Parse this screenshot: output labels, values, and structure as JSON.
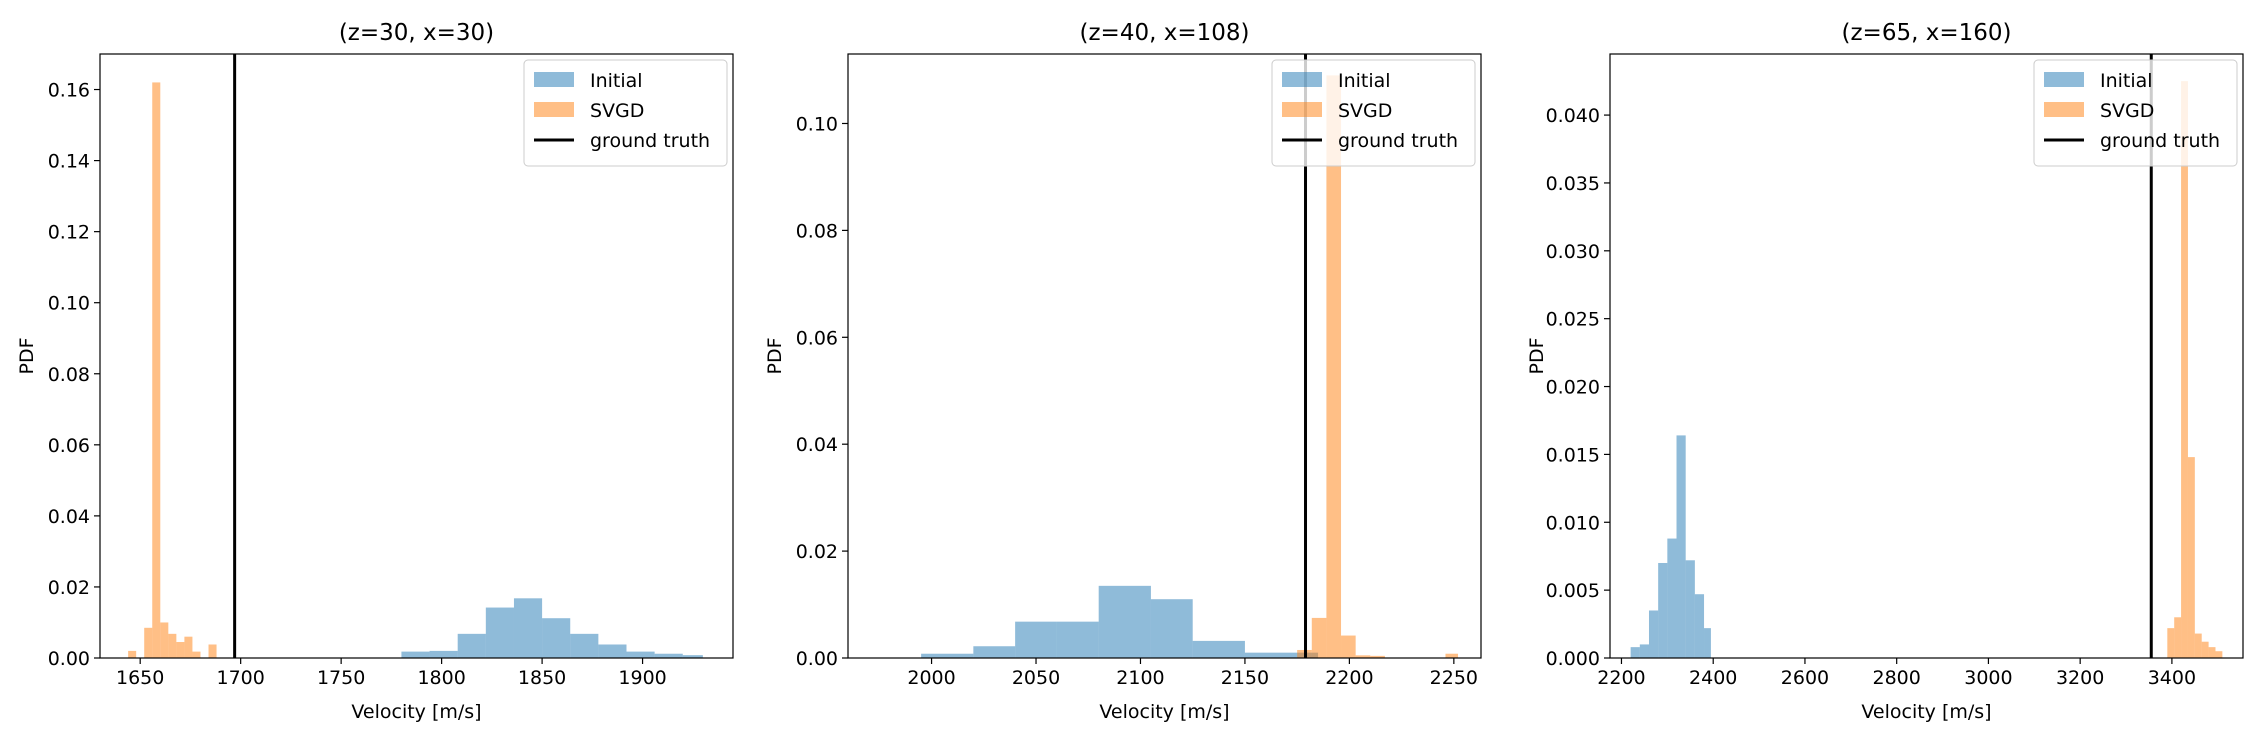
{
  "colors": {
    "initial": "#1f77b4",
    "svgd": "#ff7f0e",
    "truth": "#000000"
  },
  "legend": {
    "initial": "Initial",
    "svgd": "SVGD",
    "truth": "ground truth"
  },
  "chart_data": [
    {
      "type": "histogram",
      "title": "(z=30, x=30)",
      "xlabel": "Velocity [m/s]",
      "ylabel": "PDF",
      "xlim": [
        1630,
        1945
      ],
      "ylim": [
        0,
        0.17
      ],
      "xticks": [
        1650,
        1700,
        1750,
        1800,
        1850,
        1900
      ],
      "yticks": [
        0.0,
        0.02,
        0.04,
        0.06,
        0.08,
        0.1,
        0.12,
        0.14,
        0.16
      ],
      "ytick_labels": [
        "0.00",
        "0.02",
        "0.04",
        "0.06",
        "0.08",
        "0.10",
        "0.12",
        "0.14",
        "0.16"
      ],
      "legend_position": "upper right",
      "ground_truth": 1697,
      "series": [
        {
          "name": "Initial",
          "bins": [
            [
              1780,
              1794,
              0.0018
            ],
            [
              1794,
              1808,
              0.002
            ],
            [
              1808,
              1822,
              0.0068
            ],
            [
              1822,
              1836,
              0.0142
            ],
            [
              1836,
              1850,
              0.0168
            ],
            [
              1850,
              1864,
              0.0112
            ],
            [
              1864,
              1878,
              0.0068
            ],
            [
              1878,
              1892,
              0.0038
            ],
            [
              1892,
              1906,
              0.0018
            ],
            [
              1906,
              1920,
              0.0012
            ],
            [
              1920,
              1930,
              0.0008
            ]
          ]
        },
        {
          "name": "SVGD",
          "bins": [
            [
              1644,
              1648,
              0.002
            ],
            [
              1652,
              1656,
              0.0085
            ],
            [
              1656,
              1660,
              0.162
            ],
            [
              1660,
              1664,
              0.01
            ],
            [
              1664,
              1668,
              0.0068
            ],
            [
              1668,
              1672,
              0.0045
            ],
            [
              1672,
              1676,
              0.006
            ],
            [
              1676,
              1680,
              0.0018
            ],
            [
              1684,
              1688,
              0.0038
            ]
          ]
        }
      ]
    },
    {
      "type": "histogram",
      "title": "(z=40, x=108)",
      "xlabel": "Velocity [m/s]",
      "ylabel": "PDF",
      "xlim": [
        1960,
        2263
      ],
      "ylim": [
        0,
        0.113
      ],
      "xticks": [
        2000,
        2050,
        2100,
        2150,
        2200,
        2250
      ],
      "yticks": [
        0.0,
        0.02,
        0.04,
        0.06,
        0.08,
        0.1
      ],
      "ytick_labels": [
        "0.00",
        "0.02",
        "0.04",
        "0.06",
        "0.08",
        "0.10"
      ],
      "legend_position": "upper right",
      "ground_truth": 2179,
      "series": [
        {
          "name": "Initial",
          "bins": [
            [
              1995,
              2020,
              0.0008
            ],
            [
              2020,
              2040,
              0.0022
            ],
            [
              2040,
              2060,
              0.0068
            ],
            [
              2060,
              2080,
              0.0068
            ],
            [
              2080,
              2105,
              0.0135
            ],
            [
              2105,
              2125,
              0.011
            ],
            [
              2125,
              2150,
              0.0032
            ],
            [
              2150,
              2185,
              0.001
            ]
          ]
        },
        {
          "name": "SVGD",
          "bins": [
            [
              2175,
              2182,
              0.0015
            ],
            [
              2182,
              2189,
              0.0075
            ],
            [
              2189,
              2196,
              0.109
            ],
            [
              2196,
              2203,
              0.0042
            ],
            [
              2203,
              2210,
              0.0005
            ],
            [
              2210,
              2217,
              0.0004
            ],
            [
              2246,
              2252,
              0.0008
            ]
          ]
        }
      ]
    },
    {
      "type": "histogram",
      "title": "(z=65, x=160)",
      "xlabel": "Velocity [m/s]",
      "ylabel": "PDF",
      "xlim": [
        2175,
        3555
      ],
      "ylim": [
        0,
        0.0445
      ],
      "xticks": [
        2200,
        2400,
        2600,
        2800,
        3000,
        3200,
        3400
      ],
      "yticks": [
        0.0,
        0.005,
        0.01,
        0.015,
        0.02,
        0.025,
        0.03,
        0.035,
        0.04
      ],
      "ytick_labels": [
        "0.000",
        "0.005",
        "0.010",
        "0.015",
        "0.020",
        "0.025",
        "0.030",
        "0.035",
        "0.040"
      ],
      "legend_position": "upper right",
      "ground_truth": 3355,
      "series": [
        {
          "name": "Initial",
          "bins": [
            [
              2220,
              2240,
              0.0008
            ],
            [
              2240,
              2260,
              0.001
            ],
            [
              2260,
              2280,
              0.0035
            ],
            [
              2280,
              2300,
              0.007
            ],
            [
              2300,
              2320,
              0.0088
            ],
            [
              2320,
              2340,
              0.0164
            ],
            [
              2340,
              2360,
              0.0072
            ],
            [
              2360,
              2380,
              0.0047
            ],
            [
              2380,
              2395,
              0.0022
            ]
          ]
        },
        {
          "name": "SVGD",
          "bins": [
            [
              3390,
              3405,
              0.0022
            ],
            [
              3405,
              3420,
              0.003
            ],
            [
              3420,
              3435,
              0.0425
            ],
            [
              3435,
              3450,
              0.0148
            ],
            [
              3450,
              3465,
              0.0018
            ],
            [
              3465,
              3480,
              0.0012
            ],
            [
              3480,
              3495,
              0.0008
            ],
            [
              3495,
              3510,
              0.0005
            ]
          ]
        }
      ]
    }
  ]
}
